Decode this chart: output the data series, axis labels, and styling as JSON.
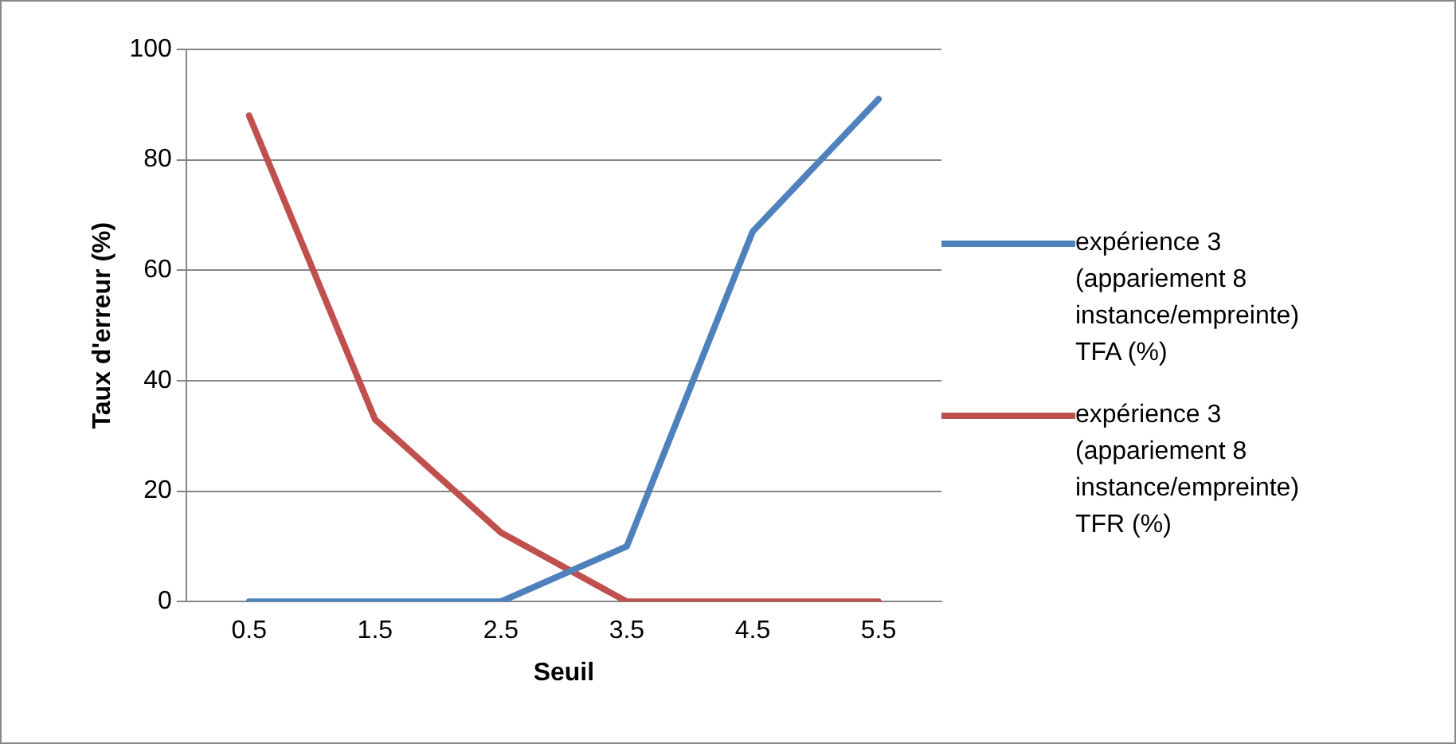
{
  "chart_data": {
    "type": "line",
    "xlabel": "Seuil",
    "ylabel": "Taux d'erreur (%)",
    "categories": [
      "0.5",
      "1.5",
      "2.5",
      "3.5",
      "4.5",
      "5.5"
    ],
    "series": [
      {
        "name": "expérience 3 (appariement 8 instance/empreinte) TFA (%)",
        "color": "#4f81bd",
        "values": [
          0,
          0,
          0,
          10,
          67,
          91
        ]
      },
      {
        "name": "expérience 3 (appariement 8 instance/empreinte) TFR (%)",
        "color": "#c0504d",
        "values": [
          88,
          33,
          12.5,
          0,
          0,
          0
        ]
      }
    ],
    "ylim": [
      0,
      100
    ],
    "yticks": [
      0,
      20,
      40,
      60,
      80,
      100
    ],
    "grid": "y",
    "legend": "right",
    "marker": "none",
    "line_style": "solid"
  }
}
